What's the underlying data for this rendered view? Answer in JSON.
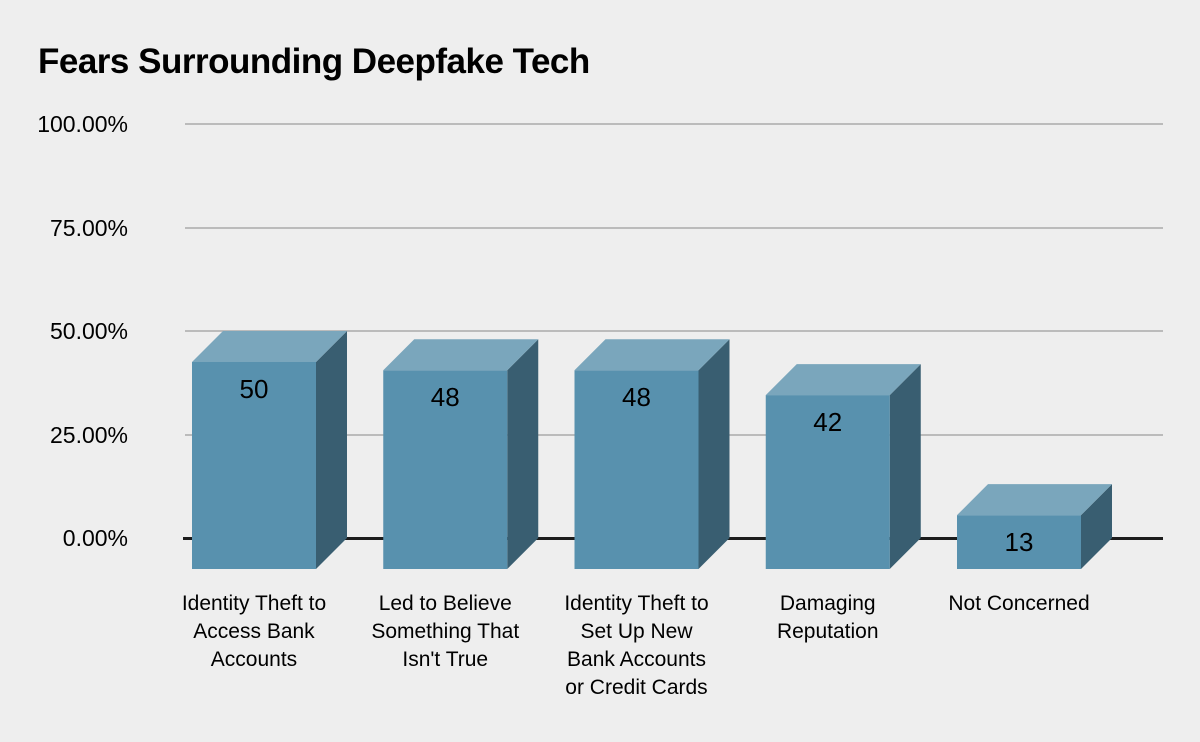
{
  "page": {
    "background": "#EEEEEE"
  },
  "chart_data": {
    "type": "bar",
    "style": "3d",
    "title": "Fears Surrounding Deepfake Tech",
    "categories": [
      "Identity Theft to Access Bank Accounts",
      "Led to Believe Something That Isn't True",
      "Identity Theft to Set Up New Bank Accounts or Credit Cards",
      "Damaging Reputation",
      "Not Concerned"
    ],
    "category_lines": [
      [
        "Identity Theft to",
        "Access Bank",
        "Accounts"
      ],
      [
        "Led to Believe",
        "Something That",
        "Isn't True"
      ],
      [
        "Identity Theft to",
        "Set Up New",
        "Bank Accounts",
        "or Credit Cards"
      ],
      [
        "Damaging",
        "Reputation"
      ],
      [
        "Not Concerned"
      ]
    ],
    "values": [
      50,
      48,
      48,
      42,
      13
    ],
    "value_labels": [
      "50",
      "48",
      "48",
      "42",
      "13"
    ],
    "xlabel": "",
    "ylabel": "",
    "ylim": [
      0,
      100
    ],
    "yticks": [
      {
        "value": 100,
        "label": "100.00%"
      },
      {
        "value": 75,
        "label": "75.00%"
      },
      {
        "value": 50,
        "label": "50.00%"
      },
      {
        "value": 25,
        "label": "25.00%"
      },
      {
        "value": 0,
        "label": "0.00%"
      }
    ],
    "grid": true,
    "legend": "none",
    "colors": {
      "background": "#EEEEEE",
      "bar_front": "#5891AE",
      "bar_top": "#7AA6BC",
      "bar_side": "#395E71",
      "gridline": "#BBBBBB",
      "axis": "#1C1C1C",
      "text": "#000000"
    }
  }
}
